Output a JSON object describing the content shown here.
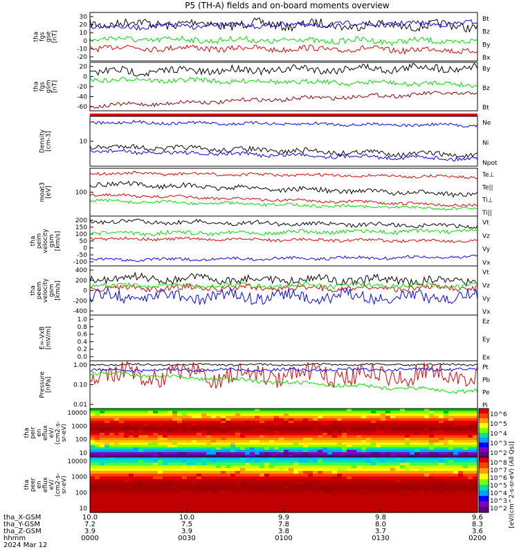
{
  "title": "P5 (TH-A) fields and on-board moments overview",
  "colors": {
    "black": "#000000",
    "red": "#e00000",
    "green": "#00e000",
    "blue": "#0000ff",
    "darkred": "#8b0000"
  },
  "chart_data": [
    {
      "type": "line",
      "panel": "fgs_gse",
      "ylabel": [
        "tha",
        "fgs",
        "gse",
        "[nT]"
      ],
      "ylim": [
        -25,
        35
      ],
      "yticks": [
        "30",
        "20",
        "10",
        "0",
        "-10",
        "-20"
      ],
      "series": [
        {
          "name": "Bt",
          "color": "#000000"
        },
        {
          "name": "Bz",
          "color": "#e00000"
        },
        {
          "name": "By",
          "color": "#00e000"
        },
        {
          "name": "Bx",
          "color": "#0000ff"
        }
      ]
    },
    {
      "type": "line",
      "panel": "fgs_gsm",
      "ylabel": [
        "tha",
        "fgs",
        "gsm",
        "[nT]"
      ],
      "ylim": [
        -75,
        30
      ],
      "yticks": [
        "20",
        "0",
        "-20",
        "-40",
        "-60"
      ],
      "series": [
        {
          "name": "By",
          "color": "#00e000"
        },
        {
          "name": "Bz",
          "color": "#8b0000"
        },
        {
          "name": "Bt",
          "color": "#000000"
        }
      ]
    },
    {
      "type": "line",
      "panel": "density",
      "ylabel": [
        "Density",
        "[cm-3]"
      ],
      "yticks": [
        "10"
      ],
      "series": [
        {
          "name": "Ne",
          "color": "#0000ff"
        },
        {
          "name": "Ni",
          "color": "#000000"
        },
        {
          "name": "Npot",
          "color": "#0000ff"
        }
      ]
    },
    {
      "type": "line",
      "panel": "temperature",
      "ylabel": [
        "moat3",
        "[eV]"
      ],
      "yticks": [
        "100"
      ],
      "series": [
        {
          "name": "Te⊥",
          "color": "#e00000"
        },
        {
          "name": "Te||",
          "color": "#000000"
        },
        {
          "name": "Ti⊥",
          "color": "#e00000"
        },
        {
          "name": "Ti||",
          "color": "#00e000"
        }
      ]
    },
    {
      "type": "line",
      "panel": "peim_velocity",
      "ylabel": [
        "tha",
        "peim",
        "velocity",
        "gsm",
        "[km/s]"
      ],
      "ylim": [
        -150,
        200
      ],
      "yticks": [
        "200",
        "150",
        "100",
        "50",
        "0",
        "-50",
        "-100"
      ],
      "series": [
        {
          "name": "Vt",
          "color": "#000000"
        },
        {
          "name": "Vz",
          "color": "#e00000"
        },
        {
          "name": "Vy",
          "color": "#00e000"
        },
        {
          "name": "Vx",
          "color": "#0000ff"
        }
      ]
    },
    {
      "type": "line",
      "panel": "peem_velocity",
      "ylabel": [
        "tha",
        "peem",
        "velocity",
        "gsm",
        "[km/s]"
      ],
      "ylim": [
        -400,
        400
      ],
      "yticks": [
        "400",
        "200",
        "0",
        "-200",
        "-400"
      ],
      "series": [
        {
          "name": "Vt",
          "color": "#000000"
        },
        {
          "name": "Vz",
          "color": "#e00000"
        },
        {
          "name": "Vy",
          "color": "#00e000"
        },
        {
          "name": "Vx",
          "color": "#0000ff"
        }
      ]
    },
    {
      "type": "line",
      "panel": "efield",
      "ylabel": [
        "E=-VxB",
        "[mV/m]"
      ],
      "ylim": [
        0,
        1
      ],
      "yticks": [
        "1.0",
        "0.8",
        "0.6",
        "0.4",
        "0.2",
        "0.0"
      ],
      "series": [
        {
          "name": "Ez",
          "color": "#e00000"
        },
        {
          "name": "Ey",
          "color": "#00e000"
        },
        {
          "name": "Ex",
          "color": "#0000ff"
        }
      ]
    },
    {
      "type": "line",
      "panel": "pressure",
      "ylabel": [
        "Pressure",
        "[nPa]"
      ],
      "yticks": [
        "1.00",
        "0.10",
        "0.01"
      ],
      "series": [
        {
          "name": "Pt",
          "color": "#000000"
        },
        {
          "name": "Pb",
          "color": "#e00000"
        },
        {
          "name": "Pe",
          "color": "#00e000"
        },
        {
          "name": "Pi",
          "color": "#0000ff"
        }
      ]
    },
    {
      "type": "heatmap",
      "panel": "peir",
      "ylabel": [
        "tha",
        "peir",
        "en",
        "eflux",
        "eV/",
        "(cm2-s-",
        "sr-eV)"
      ],
      "yticks": [
        "10000",
        "1000",
        "100",
        "10"
      ],
      "colorbar": [
        "10^6",
        "10^5",
        "10^4",
        "10^3",
        "10^2"
      ],
      "colorbar_label": "[eV/(cm^2-s-sr-eV) (All Qs)]"
    },
    {
      "type": "heatmap",
      "panel": "peer",
      "ylabel": [
        "tha",
        "peer",
        "en",
        "eflux",
        "eV/",
        "(cm2-s-",
        "sr-eV)"
      ],
      "yticks": [
        "10000",
        "1000",
        "100",
        "10"
      ],
      "colorbar": [
        "10^8",
        "10^7",
        "10^6",
        "10^5",
        "10^4",
        "10^3",
        "10^2"
      ],
      "colorbar_label": "[eV/(cm^2-s-sr-eV) (All Qs)]"
    }
  ],
  "x_axis": {
    "row_labels": [
      "tha_X-GSM",
      "tha_Y-GSM",
      "tha_Z-GSM",
      "hhmm",
      "2024 Mar 12"
    ],
    "ticks": [
      {
        "x": [
          "10.0",
          "7.2",
          "3.9",
          "0000"
        ]
      },
      {
        "x": [
          "10.0",
          "7.5",
          "3.9",
          "0030"
        ]
      },
      {
        "x": [
          "9.9",
          "7.8",
          "3.8",
          "0100"
        ]
      },
      {
        "x": [
          "9.8",
          "8.0",
          "3.7",
          "0130"
        ]
      },
      {
        "x": [
          "9.6",
          "8.3",
          "3.6",
          "0200"
        ]
      }
    ]
  }
}
